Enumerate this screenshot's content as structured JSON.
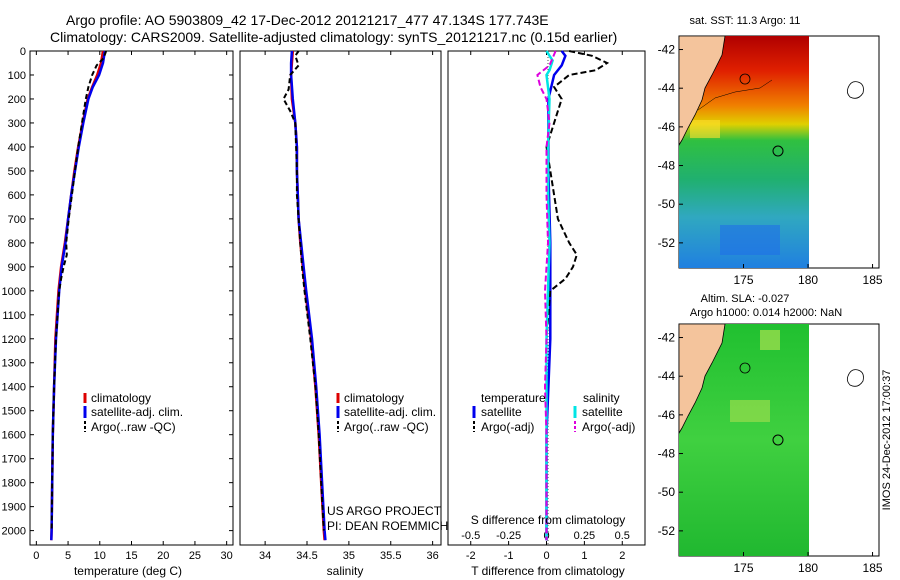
{
  "header": {
    "line1": "Argo profile: AO 5903809_42 17-Dec-2012 20121217_477 47.134S 177.743E",
    "line2": "Climatology: CARS2009. Satellite-adjusted climatology: synTS_20121217.nc (0.15d earlier)"
  },
  "colors": {
    "climatology": "#dd0000",
    "satellite": "#0000ee",
    "argo": "#000000",
    "salinity_sat": "#00e5e5",
    "salinity_argo": "#dd00dd"
  },
  "chart_data": [
    {
      "type": "line",
      "name": "temperature",
      "xlabel": "temperature (deg C)",
      "xlim": [
        -1,
        31
      ],
      "xticks": [
        "0",
        "5",
        "10",
        "15",
        "20",
        "25",
        "30"
      ],
      "ylim": [
        0,
        2060
      ],
      "yticks": [
        "0",
        "100",
        "200",
        "300",
        "400",
        "500",
        "600",
        "700",
        "800",
        "900",
        "1000",
        "1100",
        "1200",
        "1300",
        "1400",
        "1500",
        "1600",
        "1700",
        "1800",
        "1900",
        "2000"
      ],
      "legend": [
        "climatology",
        "satellite-adj. clim.",
        "Argo(..raw -QC)"
      ],
      "series": [
        {
          "name": "climatology",
          "depth": [
            0,
            50,
            100,
            150,
            200,
            300,
            400,
            500,
            600,
            700,
            800,
            900,
            1000,
            1200,
            1400,
            1600,
            1800,
            2000,
            2040
          ],
          "values": [
            10.5,
            10.2,
            9.6,
            8.8,
            8.1,
            7.3,
            6.6,
            6.0,
            5.5,
            5.0,
            4.5,
            3.9,
            3.5,
            3.0,
            2.8,
            2.6,
            2.5,
            2.4,
            2.35
          ]
        },
        {
          "name": "satellite",
          "depth": [
            0,
            50,
            100,
            150,
            200,
            300,
            400,
            500,
            600,
            700,
            800,
            900,
            1000,
            1200,
            1400,
            1600,
            1800,
            2000,
            2040
          ],
          "values": [
            10.8,
            10.5,
            9.9,
            8.9,
            8.2,
            7.4,
            6.7,
            6.1,
            5.5,
            5.0,
            4.6,
            4.0,
            3.6,
            3.1,
            2.8,
            2.6,
            2.5,
            2.4,
            2.35
          ]
        },
        {
          "name": "argo",
          "depth": [
            0,
            30,
            60,
            100,
            150,
            200,
            300,
            400,
            500,
            600,
            700,
            800,
            850,
            900,
            950,
            1000,
            1200,
            1400,
            1600,
            1800,
            2000
          ],
          "values": [
            11.0,
            10.6,
            9.5,
            8.8,
            8.2,
            7.8,
            7.2,
            6.6,
            6.1,
            5.6,
            5.1,
            4.7,
            4.8,
            4.3,
            3.9,
            3.6,
            3.1,
            2.8,
            2.6,
            2.5,
            2.4
          ]
        }
      ],
      "annotations": []
    },
    {
      "type": "line",
      "name": "salinity",
      "xlabel": "salinity",
      "xlim": [
        33.7,
        36.1
      ],
      "xticks": [
        "34",
        "34.5",
        "35",
        "35.5",
        "36"
      ],
      "ylim": [
        0,
        2060
      ],
      "legend": [
        "climatology",
        "satellite-adj. clim.",
        "Argo(..raw -QC)"
      ],
      "series": [
        {
          "name": "climatology",
          "depth": [
            0,
            50,
            100,
            200,
            300,
            400,
            500,
            600,
            700,
            800,
            900,
            1000,
            1200,
            1400,
            1600,
            1800,
            2000,
            2040
          ],
          "values": [
            34.33,
            34.32,
            34.31,
            34.32,
            34.36,
            34.38,
            34.38,
            34.39,
            34.4,
            34.42,
            34.45,
            34.48,
            34.55,
            34.6,
            34.64,
            34.67,
            34.7,
            34.71
          ]
        },
        {
          "name": "satellite",
          "depth": [
            0,
            50,
            100,
            200,
            300,
            400,
            500,
            600,
            700,
            800,
            900,
            1000,
            1200,
            1400,
            1600,
            1800,
            2000,
            2040
          ],
          "values": [
            34.32,
            34.31,
            34.31,
            34.33,
            34.36,
            34.38,
            34.38,
            34.39,
            34.4,
            34.43,
            34.46,
            34.49,
            34.56,
            34.61,
            34.65,
            34.68,
            34.71,
            34.72
          ]
        },
        {
          "name": "argo",
          "depth": [
            0,
            20,
            60,
            100,
            160,
            200,
            250,
            300,
            400,
            500,
            600,
            700,
            800,
            900,
            1000,
            1200,
            1400,
            1600,
            1800,
            2000
          ],
          "values": [
            34.4,
            34.36,
            34.4,
            34.3,
            34.28,
            34.22,
            34.3,
            34.36,
            34.37,
            34.38,
            34.38,
            34.4,
            34.42,
            34.44,
            34.47,
            34.54,
            34.6,
            34.64,
            34.67,
            34.7
          ]
        }
      ],
      "annotations": [
        "US ARGO PROJECT",
        "PI: DEAN ROEMMICH"
      ]
    },
    {
      "type": "line",
      "name": "differences",
      "xlabel": "T difference from climatology",
      "xlabel_top": "S difference from climatology",
      "xlim": [
        -2.6,
        2.6
      ],
      "xticks": [
        "-2",
        "-1",
        "0",
        "1",
        "2"
      ],
      "xticks_top": [
        "-0.5",
        "-0.25",
        "0",
        "0.25",
        "0.5"
      ],
      "legend_title_left": "temperature",
      "legend_title_right": "salinity",
      "legend": [
        "satellite",
        "Argo(-adj)",
        "satellite",
        "Argo(-adj)"
      ],
      "series": [
        {
          "name": "T satellite",
          "depth": [
            0,
            20,
            60,
            100,
            200,
            300,
            500,
            800,
            1000,
            1200,
            1600,
            2040
          ],
          "values": [
            0.4,
            0.5,
            0.4,
            0.2,
            0.05,
            0.05,
            0.05,
            0.1,
            0.1,
            0.1,
            0.0,
            0.0
          ]
        },
        {
          "name": "T argo",
          "depth": [
            0,
            20,
            50,
            80,
            100,
            150,
            200,
            300,
            400,
            600,
            700,
            800,
            850,
            900,
            950,
            1000,
            1100,
            1200,
            1600,
            2040
          ],
          "values": [
            0.6,
            1.2,
            1.6,
            1.3,
            0.6,
            0.2,
            0.4,
            0.2,
            0.0,
            0.2,
            0.3,
            0.6,
            0.8,
            0.7,
            0.5,
            0.1,
            0.05,
            0.0,
            0.0,
            0.0
          ]
        },
        {
          "name": "S satellite",
          "depth": [
            0,
            40,
            80,
            100,
            200,
            400,
            600,
            800,
            1000,
            1200,
            1600,
            2040
          ],
          "values": [
            0.0,
            0.04,
            0.02,
            0.0,
            0.02,
            0.01,
            0.01,
            0.02,
            0.01,
            0.0,
            0.0,
            0.0
          ]
        },
        {
          "name": "S argo",
          "depth": [
            0,
            30,
            60,
            100,
            150,
            200,
            300,
            400,
            600,
            800,
            1000,
            1200,
            1400,
            1600,
            2040
          ],
          "values": [
            0.06,
            0.04,
            0.02,
            -0.06,
            -0.04,
            0.0,
            0.02,
            0.0,
            0.0,
            0.01,
            -0.01,
            0.0,
            -0.01,
            0.0,
            0.0
          ]
        }
      ]
    },
    {
      "type": "heatmap",
      "name": "sst-map",
      "title": "sat. SST: 11.3 Argo: 11",
      "xticks": [
        "175",
        "180",
        "185"
      ],
      "yticks": [
        "-42",
        "-44",
        "-46",
        "-48",
        "-50",
        "-52"
      ]
    },
    {
      "type": "heatmap",
      "name": "sla-map",
      "title": "Altim. SLA: -0.027",
      "subtitle": "Argo h1000: 0.014 h2000: NaN",
      "xticks": [
        "175",
        "180",
        "185"
      ],
      "yticks": [
        "-42",
        "-44",
        "-46",
        "-48",
        "-50",
        "-52"
      ]
    }
  ],
  "side_label": "IMOS 24-Dec-2012 17:00:37"
}
